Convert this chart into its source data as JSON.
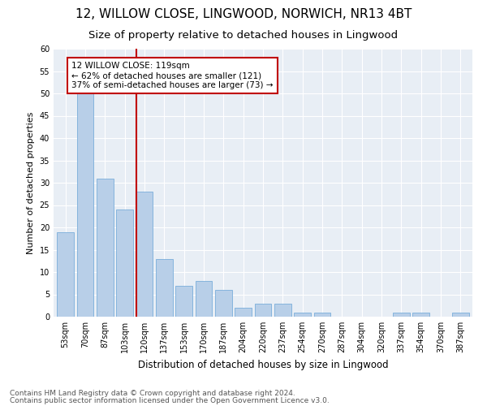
{
  "title1": "12, WILLOW CLOSE, LINGWOOD, NORWICH, NR13 4BT",
  "title2": "Size of property relative to detached houses in Lingwood",
  "xlabel": "Distribution of detached houses by size in Lingwood",
  "ylabel": "Number of detached properties",
  "categories": [
    "53sqm",
    "70sqm",
    "87sqm",
    "103sqm",
    "120sqm",
    "137sqm",
    "153sqm",
    "170sqm",
    "187sqm",
    "204sqm",
    "220sqm",
    "237sqm",
    "254sqm",
    "270sqm",
    "287sqm",
    "304sqm",
    "320sqm",
    "337sqm",
    "354sqm",
    "370sqm",
    "387sqm"
  ],
  "values": [
    19,
    50,
    31,
    24,
    28,
    13,
    7,
    8,
    6,
    2,
    3,
    3,
    1,
    1,
    0,
    0,
    0,
    1,
    1,
    0,
    1
  ],
  "bar_color": "#b8cfe8",
  "bar_edge_color": "#7aadda",
  "vline_color": "#c00000",
  "annotation_text": "12 WILLOW CLOSE: 119sqm\n← 62% of detached houses are smaller (121)\n37% of semi-detached houses are larger (73) →",
  "annotation_box_color": "#c00000",
  "background_color": "#e8eef5",
  "grid_color": "#ffffff",
  "ylim": [
    0,
    60
  ],
  "yticks": [
    0,
    5,
    10,
    15,
    20,
    25,
    30,
    35,
    40,
    45,
    50,
    55,
    60
  ],
  "footer1": "Contains HM Land Registry data © Crown copyright and database right 2024.",
  "footer2": "Contains public sector information licensed under the Open Government Licence v3.0.",
  "title_fontsize": 11,
  "subtitle_fontsize": 9.5,
  "axis_label_fontsize": 8,
  "tick_fontsize": 7,
  "annotation_fontsize": 7.5,
  "footer_fontsize": 6.5
}
